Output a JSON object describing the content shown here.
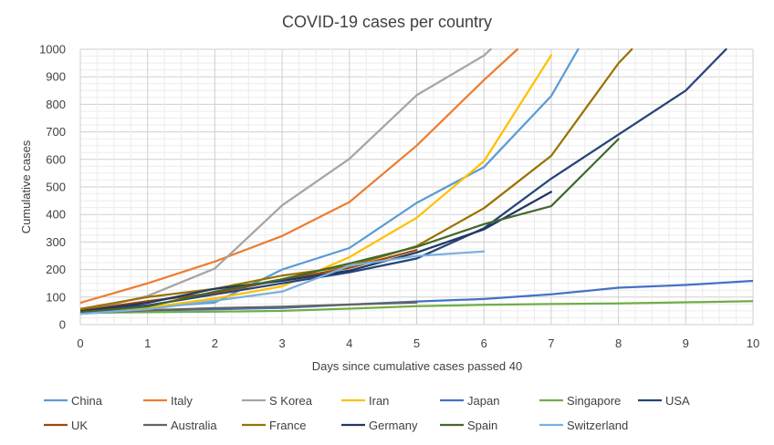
{
  "chart_data": {
    "type": "line",
    "title": "COVID-19 cases per country",
    "xlabel": "Days since cumulative cases passed 40",
    "ylabel": "Cumulative cases",
    "xlim": [
      0,
      10
    ],
    "ylim": [
      0,
      1000
    ],
    "x_ticks": [
      "0",
      "1",
      "2",
      "3",
      "4",
      "5",
      "6",
      "7",
      "8",
      "9",
      "10"
    ],
    "y_ticks": [
      "0",
      "100",
      "200",
      "300",
      "400",
      "500",
      "600",
      "700",
      "800",
      "900",
      "1000"
    ],
    "grid": true,
    "legend_position": "bottom",
    "series": [
      {
        "name": "China",
        "color": "#5B9BD5",
        "x": [
          0,
          1,
          2,
          3,
          4,
          5,
          6,
          7,
          7.4
        ],
        "y": [
          41,
          62,
          80,
          200,
          278,
          442,
          572,
          830,
          1000
        ]
      },
      {
        "name": "Italy",
        "color": "#ED7D31",
        "x": [
          0,
          1,
          2,
          3,
          4,
          5,
          6,
          6.5
        ],
        "y": [
          79,
          150,
          229,
          322,
          445,
          650,
          888,
          1000
        ]
      },
      {
        "name": "S Korea",
        "color": "#A5A5A5",
        "x": [
          0,
          1,
          2,
          3,
          4,
          5,
          6,
          6.1
        ],
        "y": [
          46,
          104,
          204,
          433,
          602,
          833,
          977,
          1000
        ]
      },
      {
        "name": "Iran",
        "color": "#FFC000",
        "x": [
          0,
          1,
          2,
          3,
          4,
          5,
          6,
          7
        ],
        "y": [
          43,
          61,
          95,
          139,
          245,
          388,
          593,
          978
        ]
      },
      {
        "name": "Japan",
        "color": "#4472C4",
        "x": [
          0,
          1,
          2,
          3,
          4,
          5,
          6,
          7,
          8,
          9,
          10
        ],
        "y": [
          45,
          51,
          56,
          61,
          73,
          84,
          93,
          110,
          134,
          144,
          159
        ]
      },
      {
        "name": "Singapore",
        "color": "#70AD47",
        "x": [
          0,
          1,
          2,
          3,
          4,
          5,
          6,
          7,
          8,
          9,
          10
        ],
        "y": [
          43,
          45,
          47,
          50,
          58,
          67,
          72,
          75,
          77,
          81,
          85
        ]
      },
      {
        "name": "USA",
        "color": "#264478",
        "x": [
          0,
          1,
          2,
          3,
          4,
          5,
          6,
          7,
          8,
          9,
          9.6
        ],
        "y": [
          53,
          70,
          110,
          150,
          190,
          240,
          350,
          530,
          690,
          850,
          1000
        ]
      },
      {
        "name": "UK",
        "color": "#9E480E",
        "x": [
          0,
          1,
          2,
          3,
          4,
          5
        ],
        "y": [
          51,
          85,
          115,
          163,
          206,
          271
        ]
      },
      {
        "name": "Australia",
        "color": "#636363",
        "x": [
          0,
          1,
          2,
          3,
          4,
          5
        ],
        "y": [
          40,
          52,
          60,
          65,
          73,
          80
        ]
      },
      {
        "name": "France",
        "color": "#997300",
        "x": [
          0,
          1,
          2,
          3,
          4,
          5,
          6,
          7,
          8,
          8.2
        ],
        "y": [
          57,
          100,
          130,
          178,
          212,
          285,
          423,
          613,
          949,
          1000
        ]
      },
      {
        "name": "Germany",
        "color": "#203864",
        "x": [
          0,
          1,
          2,
          3,
          4,
          5,
          6,
          7
        ],
        "y": [
          48,
          79,
          130,
          159,
          196,
          262,
          346,
          482
        ]
      },
      {
        "name": "Spain",
        "color": "#43682B",
        "x": [
          0,
          1,
          2,
          3,
          4,
          5,
          6,
          7,
          8
        ],
        "y": [
          45,
          66,
          120,
          165,
          222,
          282,
          365,
          430,
          674
        ]
      },
      {
        "name": "Switzerland",
        "color": "#7CAFDD",
        "x": [
          0,
          1,
          2,
          3,
          4,
          5,
          6
        ],
        "y": [
          39,
          56,
          87,
          120,
          214,
          249,
          266
        ]
      }
    ]
  }
}
